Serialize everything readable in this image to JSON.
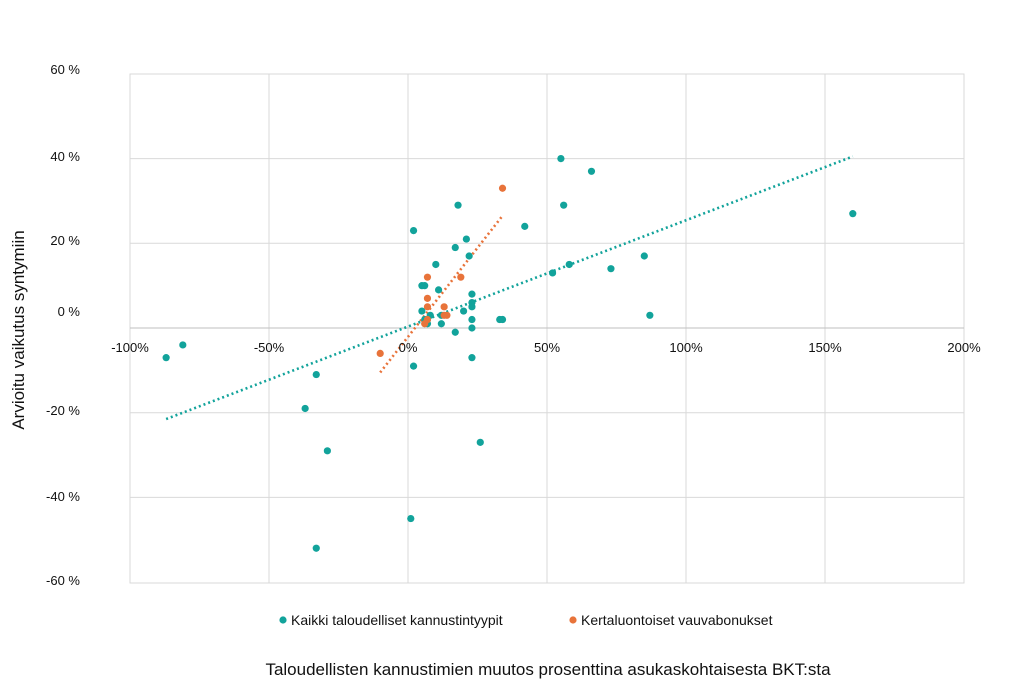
{
  "chart_data": {
    "type": "scatter",
    "title": "",
    "xlabel": "Taloudellisten kannustimien muutos prosenttina asukaskohtaisesta BKT:sta",
    "ylabel": "Arvioitu vaikutus syntymiin",
    "xlim": [
      -100,
      200
    ],
    "ylim": [
      -60,
      60
    ],
    "x_ticks": [
      -100,
      -50,
      0,
      50,
      100,
      150,
      200
    ],
    "x_tick_labels": [
      "-100%",
      "-50%",
      "0%",
      "50%",
      "100%",
      "150%",
      "200%"
    ],
    "y_ticks": [
      60,
      40,
      20,
      0,
      -20,
      -40,
      -60
    ],
    "y_tick_labels": [
      "60 %",
      "40 %",
      "20 %",
      "0 %",
      "-20 %",
      "-40 %",
      "-60 %"
    ],
    "grid": true,
    "legend_position": "bottom",
    "series": [
      {
        "name": "Kaikki taloudelliset kannustintyypit",
        "color": "#12A39B",
        "trendline": {
          "type": "linear",
          "from": [
            -87,
            -21.5
          ],
          "to": [
            160,
            40.5
          ]
        },
        "points": [
          [
            -87,
            -7
          ],
          [
            -81,
            -4
          ],
          [
            -37,
            -19
          ],
          [
            -33,
            -11
          ],
          [
            -33,
            -52
          ],
          [
            -29,
            -29
          ],
          [
            1,
            -45
          ],
          [
            2,
            -9
          ],
          [
            2,
            23
          ],
          [
            5,
            10
          ],
          [
            5,
            4
          ],
          [
            6,
            10
          ],
          [
            6,
            2
          ],
          [
            7,
            1
          ],
          [
            7,
            2
          ],
          [
            8,
            3
          ],
          [
            10,
            15
          ],
          [
            11,
            9
          ],
          [
            12,
            3
          ],
          [
            12,
            1
          ],
          [
            17,
            19
          ],
          [
            17,
            -1
          ],
          [
            18,
            29
          ],
          [
            20,
            4
          ],
          [
            21,
            21
          ],
          [
            22,
            17
          ],
          [
            23,
            8
          ],
          [
            23,
            6
          ],
          [
            23,
            5
          ],
          [
            23,
            2
          ],
          [
            23,
            0
          ],
          [
            23,
            -7
          ],
          [
            26,
            -27
          ],
          [
            33,
            2
          ],
          [
            34,
            2
          ],
          [
            42,
            24
          ],
          [
            52,
            13
          ],
          [
            55,
            40
          ],
          [
            56,
            29
          ],
          [
            58,
            15
          ],
          [
            66,
            37
          ],
          [
            73,
            14
          ],
          [
            85,
            17
          ],
          [
            87,
            3
          ],
          [
            160,
            27
          ]
        ]
      },
      {
        "name": "Kertaluontoiset vauvabonukset",
        "color": "#E8733A",
        "trendline": {
          "type": "linear",
          "from": [
            -10,
            -10.5
          ],
          "to": [
            34,
            26.5
          ]
        },
        "points": [
          [
            -10,
            -6
          ],
          [
            6,
            1
          ],
          [
            7,
            12
          ],
          [
            7,
            7
          ],
          [
            7,
            5
          ],
          [
            7,
            2
          ],
          [
            13,
            5
          ],
          [
            13,
            3
          ],
          [
            14,
            3
          ],
          [
            19,
            12
          ],
          [
            34,
            33
          ]
        ]
      }
    ]
  }
}
